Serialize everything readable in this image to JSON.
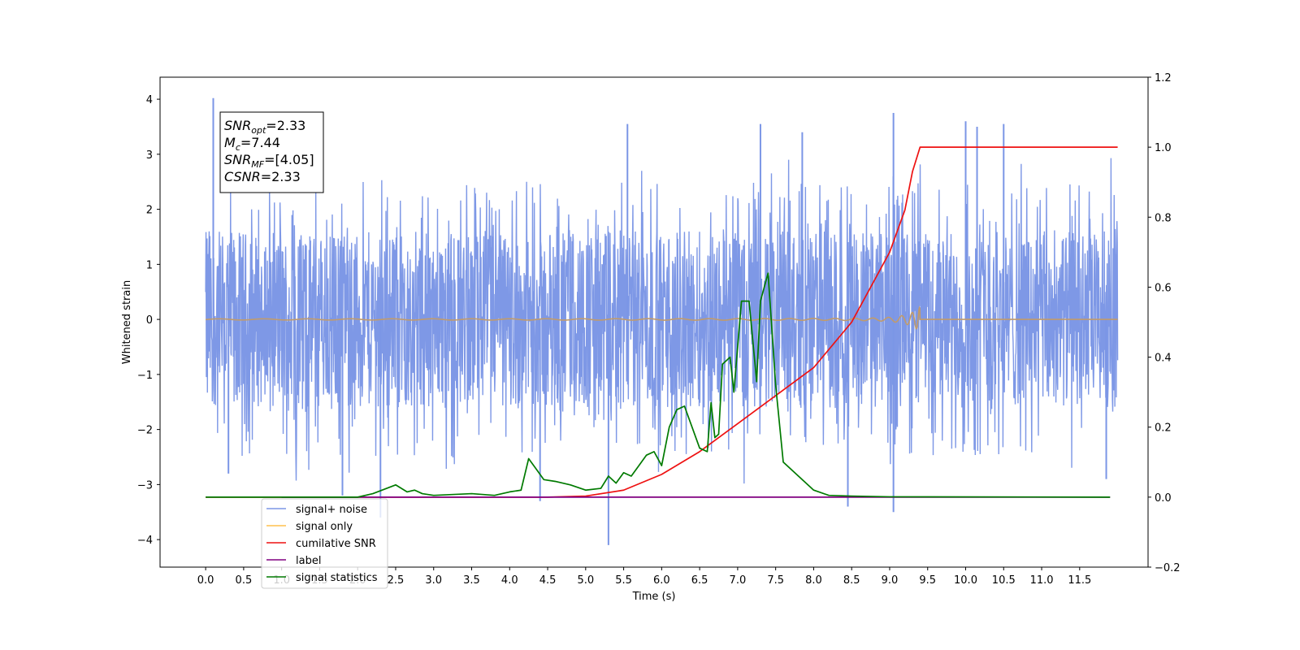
{
  "chart_data": {
    "type": "line",
    "title": "",
    "xlabel": "Time (s)",
    "ylabel": "Whitened strain",
    "y2label": "",
    "xlim": [
      -0.6,
      12.4
    ],
    "ylim": [
      -4.5,
      4.4
    ],
    "y2lim": [
      -0.2,
      1.2
    ],
    "xticks": [
      0.0,
      0.5,
      1.0,
      1.5,
      2.0,
      2.5,
      3.0,
      3.5,
      4.0,
      4.5,
      5.0,
      5.5,
      6.0,
      6.5,
      7.0,
      7.5,
      8.0,
      8.5,
      9.0,
      9.5,
      10.0,
      10.5,
      11.0,
      11.5
    ],
    "yticks": [
      -4,
      -3,
      -2,
      -1,
      0,
      1,
      2,
      3,
      4
    ],
    "y2ticks": [
      -0.2,
      0.0,
      0.2,
      0.4,
      0.6,
      0.8,
      1.0,
      1.2
    ],
    "grid": false,
    "legend_position": "lower-left",
    "annotation": {
      "lines": [
        {
          "sym": "SNR",
          "sub": "opt",
          "val": "=2.33"
        },
        {
          "sym": "M",
          "sub": "c",
          "val": "=7.44"
        },
        {
          "sym": "SNR",
          "sub": "MF",
          "val": "=[4.05]"
        },
        {
          "sym": "CSNR",
          "sub": "",
          "val": "=2.33"
        }
      ]
    },
    "series": [
      {
        "name": "signal+ noise",
        "axis": "left",
        "color": "#7b96e6",
        "kind": "noise",
        "x_range": [
          0.0,
          12.0
        ],
        "typical_range": [
          -1.6,
          1.6
        ],
        "peaks": [
          [
            0.1,
            4.02
          ],
          [
            0.3,
            -2.8
          ],
          [
            1.8,
            -3.2
          ],
          [
            2.3,
            -3.6
          ],
          [
            4.4,
            -3.3
          ],
          [
            5.3,
            -4.1
          ],
          [
            5.55,
            3.55
          ],
          [
            7.3,
            3.55
          ],
          [
            7.85,
            3.4
          ],
          [
            8.45,
            -3.4
          ],
          [
            9.05,
            3.75
          ],
          [
            9.05,
            -3.5
          ],
          [
            10.0,
            3.6
          ],
          [
            10.15,
            3.5
          ],
          [
            10.5,
            3.55
          ],
          [
            11.85,
            -2.9
          ]
        ]
      },
      {
        "name": "signal only",
        "axis": "left",
        "color": "#ffc04d",
        "kind": "chirp",
        "x_range": [
          0.0,
          12.0
        ],
        "merger_time": 9.4,
        "peak_amplitude": 0.25
      },
      {
        "name": "cumilative SNR",
        "axis": "right",
        "color": "#ee1111",
        "x": [
          0.0,
          4.0,
          4.5,
          5.0,
          5.5,
          6.0,
          6.5,
          7.0,
          7.5,
          8.0,
          8.5,
          9.0,
          9.2,
          9.3,
          9.4,
          12.0
        ],
        "y": [
          0.0,
          0.0,
          0.0,
          0.003,
          0.02,
          0.065,
          0.13,
          0.21,
          0.29,
          0.37,
          0.5,
          0.7,
          0.82,
          0.93,
          1.0,
          1.0
        ]
      },
      {
        "name": "label",
        "axis": "right",
        "color": "#800080",
        "x": [
          1.0,
          11.9
        ],
        "y": [
          0.0,
          0.0
        ]
      },
      {
        "name": "signal statistics",
        "axis": "right",
        "color": "#007a00",
        "x": [
          0.0,
          2.0,
          2.2,
          2.5,
          2.65,
          2.75,
          2.85,
          3.0,
          3.5,
          3.8,
          4.0,
          4.15,
          4.25,
          4.35,
          4.45,
          4.6,
          4.8,
          5.0,
          5.2,
          5.3,
          5.4,
          5.5,
          5.6,
          5.7,
          5.8,
          5.9,
          6.0,
          6.1,
          6.2,
          6.3,
          6.4,
          6.5,
          6.6,
          6.65,
          6.7,
          6.75,
          6.8,
          6.9,
          6.95,
          7.05,
          7.15,
          7.25,
          7.3,
          7.4,
          7.45,
          7.5,
          7.6,
          7.7,
          7.8,
          8.0,
          8.2,
          8.5,
          9.0,
          11.9
        ],
        "y": [
          0.0,
          0.0,
          0.01,
          0.035,
          0.015,
          0.02,
          0.01,
          0.005,
          0.01,
          0.005,
          0.015,
          0.02,
          0.11,
          0.08,
          0.05,
          0.045,
          0.035,
          0.02,
          0.025,
          0.06,
          0.04,
          0.07,
          0.06,
          0.09,
          0.12,
          0.13,
          0.09,
          0.2,
          0.25,
          0.26,
          0.2,
          0.14,
          0.13,
          0.27,
          0.17,
          0.18,
          0.38,
          0.4,
          0.3,
          0.56,
          0.56,
          0.33,
          0.56,
          0.64,
          0.48,
          0.32,
          0.1,
          0.08,
          0.06,
          0.02,
          0.005,
          0.003,
          0.001,
          0.0
        ]
      }
    ]
  }
}
